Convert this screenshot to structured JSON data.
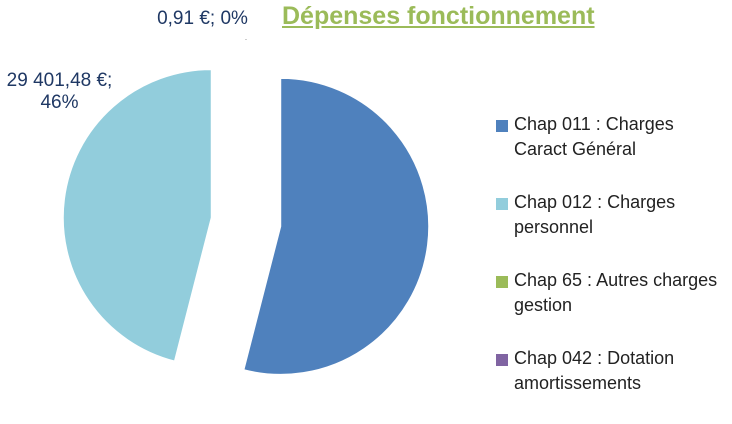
{
  "chart_data": {
    "type": "pie",
    "title": "Dépenses fonctionnement",
    "categories": [
      "Chap 011 : Charges Caract Général",
      "Chap 012 : Charges personnel",
      "Chap 65 : Autres charges gestion",
      "Chap 042 : Dotation amortissements"
    ],
    "values": [
      34514,
      29401.48,
      0.91,
      0
    ],
    "value_labels": [
      null,
      "29 401,48 €; 46%",
      "0,91 €; 0%",
      null
    ],
    "colors": [
      "#4f81bd",
      "#92cddc",
      "#9bbb59",
      "#8064a2"
    ],
    "exploded": true,
    "legend": "right"
  }
}
